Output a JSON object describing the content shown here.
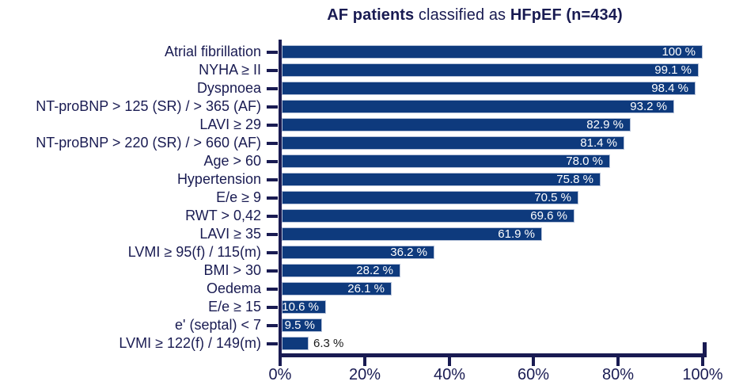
{
  "title": {
    "bold_left": "AF patients",
    "normal_middle": " classified as ",
    "bold_right": "HFpEF (n=434)"
  },
  "chart_data": {
    "type": "bar",
    "orientation": "horizontal",
    "title": "AF patients classified as HFpEF (n=434)",
    "categories": [
      "Atrial fibrillation",
      "NYHA ≥ II",
      "Dyspnoea",
      "NT-proBNP > 125 (SR) / > 365 (AF)",
      "LAVI ≥ 29",
      "NT-proBNP > 220 (SR) / > 660 (AF)",
      "Age > 60",
      "Hypertension",
      "E/e ≥ 9",
      "RWT > 0,42",
      "LAVI ≥ 35",
      "LVMI ≥ 95(f) / 115(m)",
      "BMI > 30",
      "Oedema",
      "E/e ≥ 15",
      "e' (septal) < 7",
      "LVMI ≥ 122(f) / 149(m)"
    ],
    "values": [
      100,
      99.1,
      98.4,
      93.2,
      82.9,
      81.4,
      78.0,
      75.8,
      70.5,
      69.6,
      61.9,
      36.2,
      28.2,
      26.1,
      10.6,
      9.5,
      6.3
    ],
    "value_labels": [
      "100 %",
      "99.1 %",
      "98.4 %",
      "93.2 %",
      "82.9 %",
      "81.4 %",
      "78.0 %",
      "75.8 %",
      "70.5 %",
      "69.6 %",
      "61.9 %",
      "36.2 %",
      "28.2 %",
      "26.1 %",
      "10.6 %",
      "9.5 %",
      "6.3 %"
    ],
    "x_ticks": [
      "0%",
      "20%",
      "40%",
      "60%",
      "80%",
      "100%"
    ],
    "xlim": [
      0,
      100
    ],
    "grid": false,
    "legend": false,
    "bar_color": "#0e3a7d",
    "axis_color": "#191b52",
    "value_label_inside_color": "#ffffff",
    "value_label_outside_color": "#1b1b1b"
  }
}
